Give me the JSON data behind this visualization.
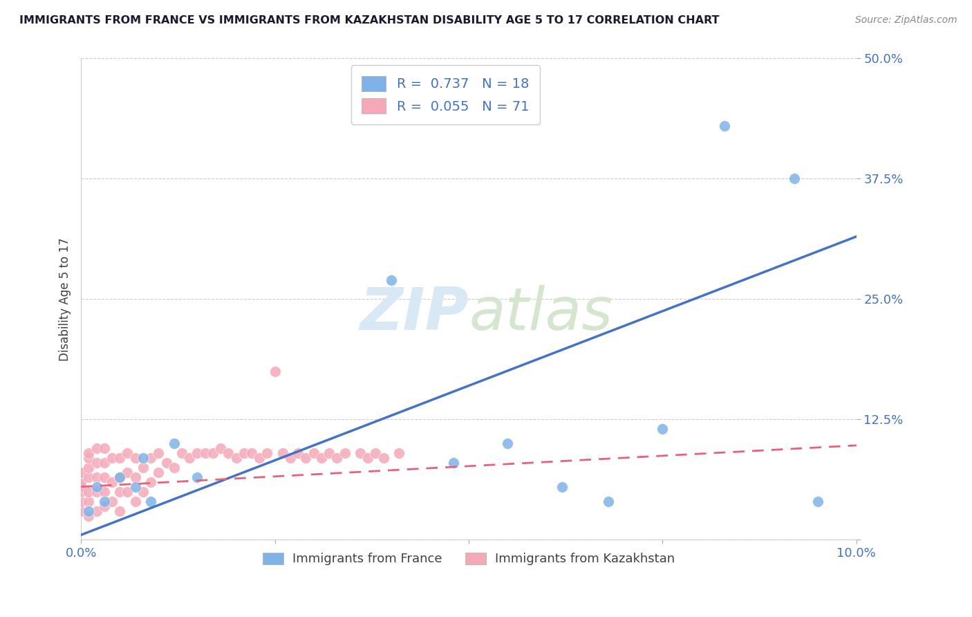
{
  "title": "IMMIGRANTS FROM FRANCE VS IMMIGRANTS FROM KAZAKHSTAN DISABILITY AGE 5 TO 17 CORRELATION CHART",
  "source": "Source: ZipAtlas.com",
  "ylabel": "Disability Age 5 to 17",
  "xlim": [
    0.0,
    0.1
  ],
  "ylim": [
    0.0,
    0.5
  ],
  "xticks": [
    0.0,
    0.025,
    0.05,
    0.075,
    0.1
  ],
  "xtick_labels": [
    "0.0%",
    "",
    "",
    "",
    "10.0%"
  ],
  "ytick_labels": [
    "",
    "12.5%",
    "25.0%",
    "37.5%",
    "50.0%"
  ],
  "yticks": [
    0.0,
    0.125,
    0.25,
    0.375,
    0.5
  ],
  "blue_color": "#7fb3e8",
  "pink_color": "#f5a8b8",
  "blue_line_color": "#4472c4",
  "pink_line_color": "#e8607a",
  "legend_R_blue": "0.737",
  "legend_N_blue": "18",
  "legend_R_pink": "0.055",
  "legend_N_pink": "71",
  "watermark": "ZIPatlas",
  "france_x": [
    0.001,
    0.002,
    0.003,
    0.005,
    0.007,
    0.008,
    0.009,
    0.012,
    0.015,
    0.04,
    0.048,
    0.055,
    0.062,
    0.068,
    0.075,
    0.083,
    0.092,
    0.095
  ],
  "france_y": [
    0.03,
    0.055,
    0.04,
    0.065,
    0.055,
    0.085,
    0.04,
    0.1,
    0.065,
    0.27,
    0.08,
    0.1,
    0.055,
    0.04,
    0.115,
    0.43,
    0.375,
    0.04
  ],
  "kaz_x": [
    0.0,
    0.0,
    0.0,
    0.0,
    0.0,
    0.0,
    0.001,
    0.001,
    0.001,
    0.001,
    0.001,
    0.001,
    0.001,
    0.002,
    0.002,
    0.002,
    0.002,
    0.002,
    0.003,
    0.003,
    0.003,
    0.003,
    0.003,
    0.004,
    0.004,
    0.004,
    0.005,
    0.005,
    0.005,
    0.005,
    0.006,
    0.006,
    0.006,
    0.007,
    0.007,
    0.007,
    0.008,
    0.008,
    0.009,
    0.009,
    0.01,
    0.01,
    0.011,
    0.012,
    0.013,
    0.014,
    0.015,
    0.016,
    0.017,
    0.018,
    0.019,
    0.02,
    0.021,
    0.022,
    0.023,
    0.024,
    0.025,
    0.026,
    0.027,
    0.028,
    0.029,
    0.03,
    0.031,
    0.032,
    0.033,
    0.034,
    0.036,
    0.037,
    0.038,
    0.039,
    0.041
  ],
  "kaz_y": [
    0.03,
    0.04,
    0.05,
    0.055,
    0.06,
    0.07,
    0.025,
    0.04,
    0.05,
    0.065,
    0.075,
    0.085,
    0.09,
    0.03,
    0.05,
    0.065,
    0.08,
    0.095,
    0.035,
    0.05,
    0.065,
    0.08,
    0.095,
    0.04,
    0.06,
    0.085,
    0.03,
    0.05,
    0.065,
    0.085,
    0.05,
    0.07,
    0.09,
    0.04,
    0.065,
    0.085,
    0.05,
    0.075,
    0.06,
    0.085,
    0.07,
    0.09,
    0.08,
    0.075,
    0.09,
    0.085,
    0.09,
    0.09,
    0.09,
    0.095,
    0.09,
    0.085,
    0.09,
    0.09,
    0.085,
    0.09,
    0.175,
    0.09,
    0.085,
    0.09,
    0.085,
    0.09,
    0.085,
    0.09,
    0.085,
    0.09,
    0.09,
    0.085,
    0.09,
    0.085,
    0.09
  ],
  "blue_line_x": [
    0.0,
    0.1
  ],
  "blue_line_y": [
    0.005,
    0.315
  ],
  "pink_line_x": [
    0.0,
    0.1
  ],
  "pink_line_y": [
    0.055,
    0.098
  ]
}
